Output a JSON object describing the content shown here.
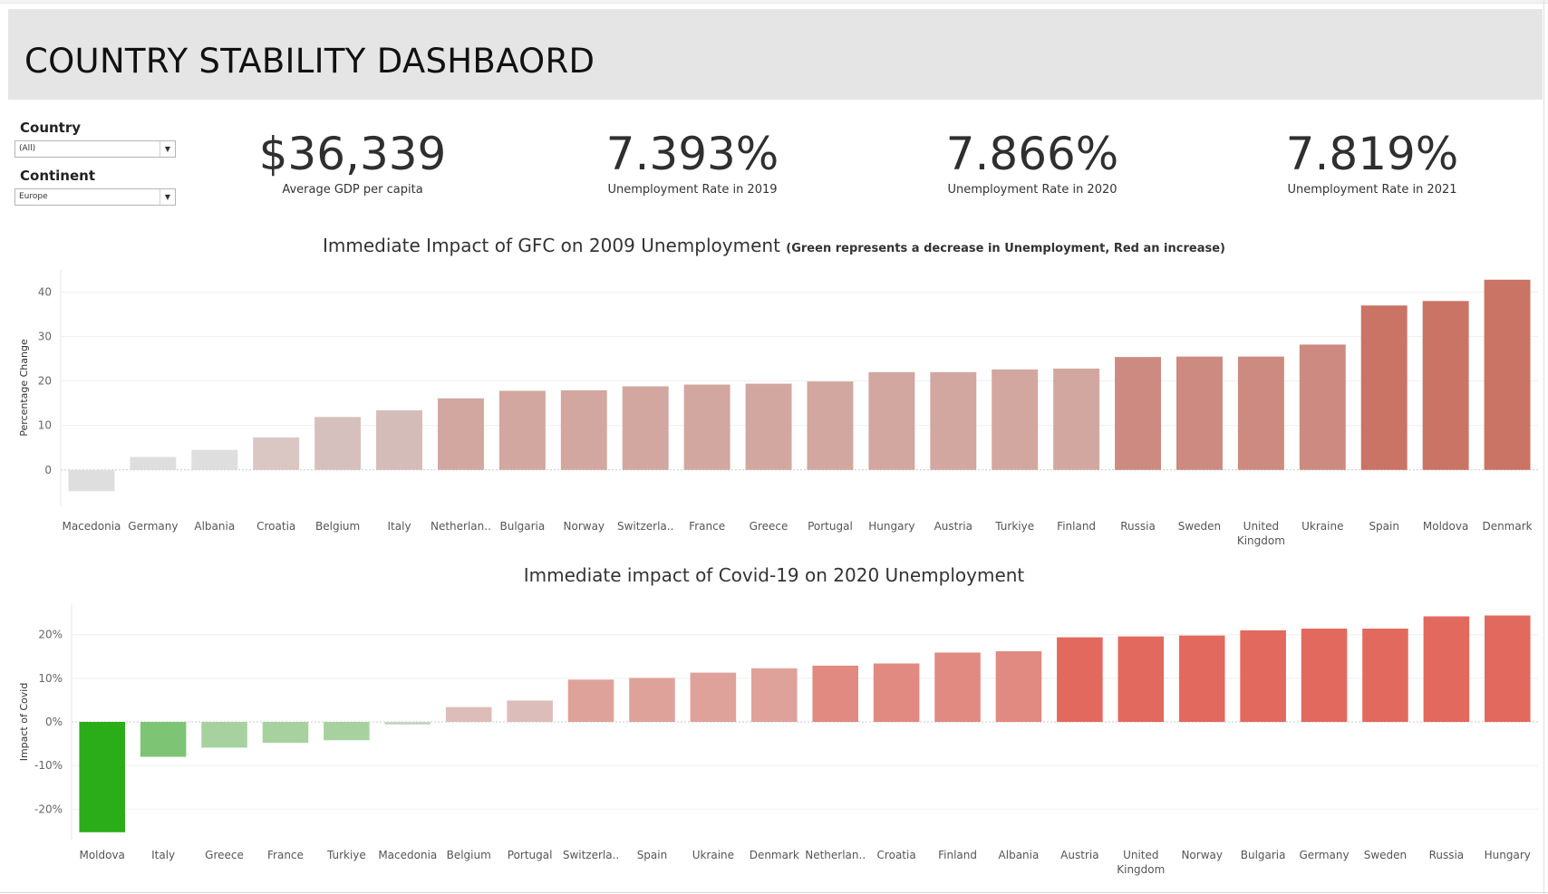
{
  "header": {
    "title": "COUNTRY STABILITY DASHBAORD"
  },
  "filters": {
    "country": {
      "label": "Country",
      "value": "(All)"
    },
    "continent": {
      "label": "Continent",
      "value": "Europe"
    }
  },
  "kpis": [
    {
      "value": "$36,339",
      "label": "Average GDP per capita"
    },
    {
      "value": "7.393%",
      "label": "Unemployment Rate in 2019"
    },
    {
      "value": "7.866%",
      "label": "Unemployment Rate in 2020"
    },
    {
      "value": "7.819%",
      "label": "Unemployment Rate in 2021"
    }
  ],
  "chart1": {
    "title": "Immediate Impact of GFC on 2009 Unemployment",
    "subtitle": "(Green represents a decrease in Unemployment, Red an increase)"
  },
  "chart2": {
    "title": "Immediate impact of Covid-19 on 2020 Unemployment"
  },
  "chart_data": [
    {
      "type": "bar",
      "title": "Immediate Impact of GFC on 2009 Unemployment",
      "subtitle": "(Green represents a decrease in Unemployment, Red an increase)",
      "xlabel": "",
      "ylabel": "Percentage Change",
      "ylim": [
        -8,
        45
      ],
      "yticks": [
        0,
        10,
        20,
        30,
        40
      ],
      "ytick_labels": [
        "0",
        "10",
        "20",
        "30",
        "40"
      ],
      "grid": true,
      "categories": [
        [
          "Macedonia"
        ],
        [
          "Germany"
        ],
        [
          "Albania"
        ],
        [
          "Croatia"
        ],
        [
          "Belgium"
        ],
        [
          "Italy"
        ],
        [
          "Netherlan.."
        ],
        [
          "Bulgaria"
        ],
        [
          "Norway"
        ],
        [
          "Switzerla.."
        ],
        [
          "France"
        ],
        [
          "Greece"
        ],
        [
          "Portugal"
        ],
        [
          "Hungary"
        ],
        [
          "Austria"
        ],
        [
          "Turkiye"
        ],
        [
          "Finland"
        ],
        [
          "Russia"
        ],
        [
          "Sweden"
        ],
        [
          "United",
          "Kingdom"
        ],
        [
          "Ukraine"
        ],
        [
          "Spain"
        ],
        [
          "Moldova"
        ],
        [
          "Denmark"
        ]
      ],
      "values": [
        -4.8,
        2.9,
        4.5,
        7.3,
        11.9,
        13.4,
        16.1,
        17.8,
        17.9,
        18.8,
        19.2,
        19.4,
        19.9,
        22.0,
        22.0,
        22.6,
        22.8,
        25.4,
        25.5,
        25.5,
        28.2,
        37.0,
        38.0,
        42.8
      ],
      "colors": [
        "#dedede",
        "#dedede",
        "#dedede",
        "#dac6c3",
        "#d6c0bd",
        "#d4bcb8",
        "#d1a7a0",
        "#d1a7a0",
        "#d1a7a0",
        "#d1a7a0",
        "#d1a7a0",
        "#d1a7a0",
        "#d1a7a0",
        "#d1a7a0",
        "#d1a7a0",
        "#d1a7a0",
        "#d1a7a0",
        "#cd8a80",
        "#cd8a80",
        "#cd8a80",
        "#cd8a80",
        "#c97464",
        "#c97464",
        "#c97464"
      ]
    },
    {
      "type": "bar",
      "title": "Immediate impact of Covid-19 on 2020 Unemployment",
      "xlabel": "",
      "ylabel": "Impact of Covid",
      "ylim": [
        -27,
        27
      ],
      "yticks": [
        -20,
        -10,
        0,
        10,
        20
      ],
      "ytick_labels": [
        "-20%",
        "-10%",
        "0%",
        "10%",
        "20%"
      ],
      "grid": true,
      "categories": [
        [
          "Moldova"
        ],
        [
          "Italy"
        ],
        [
          "Greece"
        ],
        [
          "France"
        ],
        [
          "Turkiye"
        ],
        [
          "Macedonia"
        ],
        [
          "Belgium"
        ],
        [
          "Portugal"
        ],
        [
          "Switzerla.."
        ],
        [
          "Spain"
        ],
        [
          "Ukraine"
        ],
        [
          "Denmark"
        ],
        [
          "Netherlan.."
        ],
        [
          "Croatia"
        ],
        [
          "Finland"
        ],
        [
          "Albania"
        ],
        [
          "Austria"
        ],
        [
          "United",
          "Kingdom"
        ],
        [
          "Norway"
        ],
        [
          "Bulgaria"
        ],
        [
          "Germany"
        ],
        [
          "Sweden"
        ],
        [
          "Russia"
        ],
        [
          "Hungary"
        ]
      ],
      "values": [
        -25.3,
        -8.0,
        -5.9,
        -4.8,
        -4.2,
        -0.6,
        3.4,
        4.9,
        9.7,
        10.1,
        11.3,
        12.3,
        12.9,
        13.4,
        15.9,
        16.2,
        19.4,
        19.6,
        19.8,
        21.0,
        21.4,
        21.4,
        24.2,
        24.4
      ],
      "colors": [
        "#2aad19",
        "#7dc575",
        "#a7d2a0",
        "#a7d2a0",
        "#a7d2a0",
        "#c4d8c0",
        "#ddbdb9",
        "#ddbdb9",
        "#dfa29b",
        "#dfa29b",
        "#dfa29b",
        "#dfa29b",
        "#e08a81",
        "#e08a81",
        "#e08a81",
        "#e08a81",
        "#e2695e",
        "#e2695e",
        "#e2695e",
        "#e2695e",
        "#e2695e",
        "#e2695e",
        "#e2695e",
        "#e2695e"
      ]
    }
  ]
}
